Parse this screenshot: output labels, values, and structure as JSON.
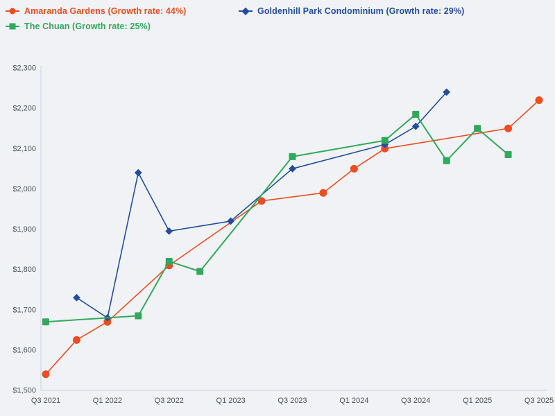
{
  "page": {
    "background": "#f0f2f5",
    "axis_color": "#c9d3e2",
    "tick_label_color": "#4c5158"
  },
  "legend": {
    "items": [
      {
        "id": "amaranda-gardens",
        "label": "Amaranda Gardens (Growth rate: 44%)",
        "color": "#ec4d21",
        "marker": "circle"
      },
      {
        "id": "goldenhill-park-condominium",
        "label": "Goldenhill Park Condominium (Growth rate: 29%)",
        "color": "#234e9d",
        "marker": "diamond"
      },
      {
        "id": "the-chuan",
        "label": "The Chuan (Growth rate: 25%)",
        "color": "#31a95c",
        "marker": "square"
      }
    ]
  },
  "chart_data": {
    "type": "line",
    "title": "",
    "xlabel": "",
    "ylabel": "",
    "grid": false,
    "legend_position": "top-left",
    "ylim": [
      1500,
      2300
    ],
    "x_quarters": [
      "Q3 2021",
      "Q4 2021",
      "Q1 2022",
      "Q2 2022",
      "Q3 2022",
      "Q4 2022",
      "Q1 2023",
      "Q2 2023",
      "Q3 2023",
      "Q4 2023",
      "Q1 2024",
      "Q2 2024",
      "Q3 2024",
      "Q4 2024",
      "Q1 2025",
      "Q2 2025",
      "Q3 2025"
    ],
    "x_tick_labels": [
      "Q3 2021",
      "Q1 2022",
      "Q3 2022",
      "Q1 2023",
      "Q3 2023",
      "Q1 2024",
      "Q3 2024",
      "Q1 2025",
      "Q3 2025"
    ],
    "y_ticks": [
      {
        "value": 1500,
        "label": "$1,500"
      },
      {
        "value": 1600,
        "label": "$1,600"
      },
      {
        "value": 1700,
        "label": "$1,700"
      },
      {
        "value": 1800,
        "label": "$1,800"
      },
      {
        "value": 1900,
        "label": "$1,900"
      },
      {
        "value": 2000,
        "label": "$2,000"
      },
      {
        "value": 2100,
        "label": "$2,100"
      },
      {
        "value": 2200,
        "label": "$2,200"
      },
      {
        "value": 2300,
        "label": "$2,300"
      }
    ],
    "series": [
      {
        "name": "Amaranda Gardens",
        "growth_rate": "44%",
        "color": "#ec4d21",
        "marker": "circle",
        "points": [
          [
            "Q3 2021",
            1540
          ],
          [
            "Q4 2021",
            1625
          ],
          [
            "Q1 2022",
            1670
          ],
          [
            "Q3 2022",
            1810
          ],
          [
            "Q2 2023",
            1970
          ],
          [
            "Q4 2023",
            1990
          ],
          [
            "Q1 2024",
            2050
          ],
          [
            "Q2 2024",
            2100
          ],
          [
            "Q2 2025",
            2150
          ],
          [
            "Q3 2025",
            2220
          ]
        ]
      },
      {
        "name": "Goldenhill Park Condominium",
        "growth_rate": "29%",
        "color": "#234e9d",
        "marker": "diamond",
        "points": [
          [
            "Q4 2021",
            1730
          ],
          [
            "Q1 2022",
            1680
          ],
          [
            "Q2 2022",
            2040
          ],
          [
            "Q3 2022",
            1895
          ],
          [
            "Q1 2023",
            1920
          ],
          [
            "Q3 2023",
            2050
          ],
          [
            "Q2 2024",
            2110
          ],
          [
            "Q3 2024",
            2155
          ],
          [
            "Q4 2024",
            2240
          ]
        ]
      },
      {
        "name": "The Chuan",
        "growth_rate": "25%",
        "color": "#31a95c",
        "marker": "square",
        "points": [
          [
            "Q3 2021",
            1670
          ],
          [
            "Q2 2022",
            1685
          ],
          [
            "Q3 2022",
            1820
          ],
          [
            "Q4 2022",
            1795
          ],
          [
            "Q3 2023",
            2080
          ],
          [
            "Q2 2024",
            2120
          ],
          [
            "Q3 2024",
            2185
          ],
          [
            "Q4 2024",
            2070
          ],
          [
            "Q1 2025",
            2150
          ],
          [
            "Q2 2025",
            2085
          ]
        ]
      }
    ]
  }
}
